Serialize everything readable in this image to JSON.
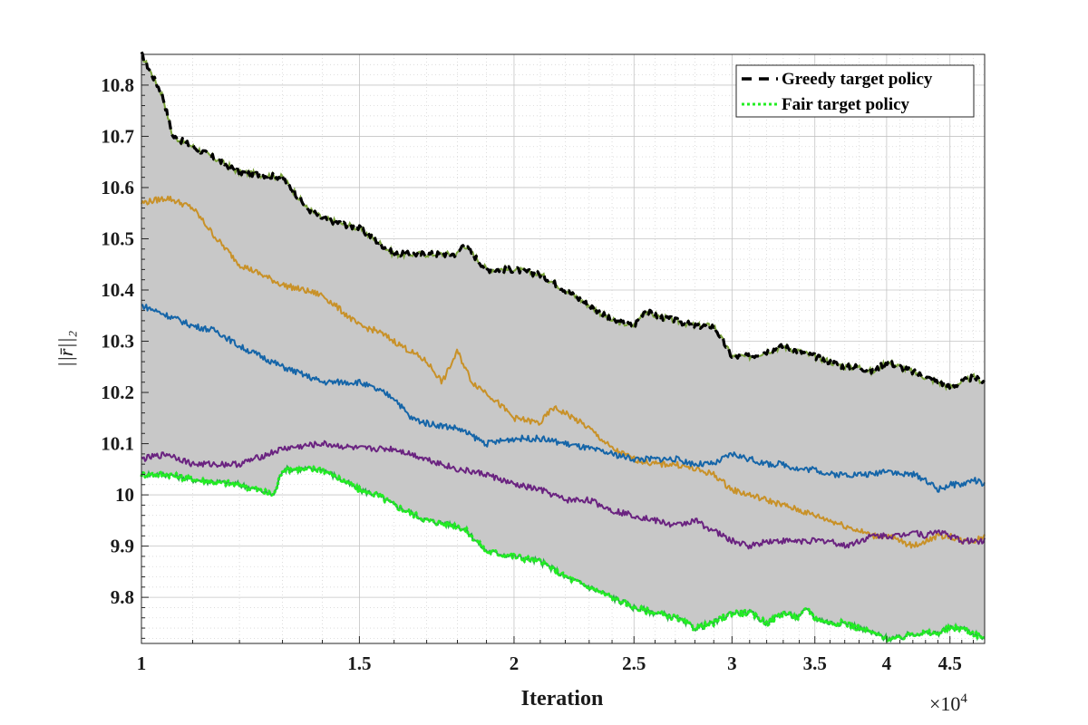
{
  "chart_data": {
    "type": "line",
    "xlabel": "Iteration",
    "ylabel": "||r̄||₂",
    "x_scale": "log",
    "x_multiplier_label": "×10",
    "x_multiplier_exponent": "4",
    "xlim": [
      10000,
      48000
    ],
    "ylim": [
      9.71,
      10.86
    ],
    "x_ticks": [
      1,
      1.5,
      2,
      2.5,
      3,
      3.5,
      4,
      4.5
    ],
    "x_tick_labels": [
      "1",
      "1.5",
      "2",
      "2.5",
      "3",
      "3.5",
      "4",
      "4.5"
    ],
    "y_ticks": [
      9.8,
      9.9,
      10,
      10.1,
      10.2,
      10.3,
      10.4,
      10.5,
      10.6,
      10.7,
      10.8
    ],
    "y_tick_labels": [
      "9.8",
      "9.9",
      "10",
      "10.1",
      "10.2",
      "10.3",
      "10.4",
      "10.5",
      "10.6",
      "10.7",
      "10.8"
    ],
    "grid": true,
    "minor_grid": true,
    "legend_position": "top-right",
    "shaded_band": {
      "between": [
        "Greedy target policy",
        "Fair target policy"
      ],
      "color": "#c8c8c8"
    },
    "series": [
      {
        "name": "Greedy target policy",
        "color": "#000000",
        "style": "dashed",
        "x": [
          10000,
          10200,
          10400,
          10600,
          11000,
          12000,
          13000,
          13600,
          14000,
          15000,
          16000,
          17000,
          18000,
          18200,
          19000,
          20000,
          21000,
          22000,
          23000,
          24000,
          25000,
          25500,
          26000,
          27000,
          28000,
          29000,
          30000,
          31000,
          32000,
          33000,
          34000,
          35000,
          36000,
          37000,
          38000,
          39000,
          40000,
          41000,
          42000,
          43000,
          44000,
          45000,
          46000,
          47000,
          48000
        ],
        "y": [
          10.86,
          10.82,
          10.78,
          10.7,
          10.68,
          10.63,
          10.62,
          10.56,
          10.54,
          10.52,
          10.47,
          10.47,
          10.47,
          10.49,
          10.44,
          10.44,
          10.43,
          10.4,
          10.37,
          10.34,
          10.33,
          10.36,
          10.35,
          10.34,
          10.33,
          10.33,
          10.27,
          10.27,
          10.28,
          10.29,
          10.28,
          10.27,
          10.26,
          10.25,
          10.25,
          10.24,
          10.26,
          10.25,
          10.24,
          10.23,
          10.22,
          10.21,
          10.22,
          10.23,
          10.22
        ]
      },
      {
        "name": "Fair target policy",
        "color": "#22ee22",
        "style": "dotted",
        "x": [
          10000,
          10500,
          11000,
          12000,
          12800,
          13000,
          13500,
          14000,
          15000,
          15500,
          16000,
          17000,
          18000,
          18300,
          19000,
          20000,
          21000,
          22000,
          23000,
          24000,
          25000,
          26000,
          27000,
          28000,
          29000,
          30000,
          31000,
          32000,
          33000,
          34000,
          34500,
          35000,
          36000,
          37000,
          38000,
          39000,
          40000,
          41000,
          42000,
          43000,
          44000,
          45000,
          46000,
          47000,
          48000
        ],
        "y": [
          10.04,
          10.04,
          10.03,
          10.02,
          10.0,
          10.05,
          10.05,
          10.05,
          10.01,
          10.0,
          9.98,
          9.95,
          9.94,
          9.93,
          9.89,
          9.88,
          9.87,
          9.84,
          9.82,
          9.8,
          9.78,
          9.77,
          9.76,
          9.74,
          9.75,
          9.77,
          9.77,
          9.75,
          9.77,
          9.76,
          9.78,
          9.76,
          9.75,
          9.75,
          9.74,
          9.73,
          9.72,
          9.72,
          9.73,
          9.73,
          9.73,
          9.74,
          9.74,
          9.73,
          9.72
        ]
      },
      {
        "color": "#c89128",
        "style": "solid",
        "x": [
          10000,
          10500,
          11000,
          11500,
          12000,
          13000,
          14000,
          15000,
          15500,
          16000,
          17000,
          17500,
          18000,
          18500,
          19000,
          20000,
          21000,
          21500,
          22000,
          23000,
          24000,
          25000,
          26000,
          27000,
          28000,
          29000,
          30000,
          31000,
          32000,
          33000,
          34000,
          35000,
          36000,
          37000,
          38000,
          39000,
          40000,
          41000,
          42000,
          43000,
          44000,
          45000,
          46000,
          47000,
          48000
        ],
        "y": [
          10.57,
          10.58,
          10.56,
          10.5,
          10.45,
          10.41,
          10.39,
          10.33,
          10.32,
          10.3,
          10.26,
          10.22,
          10.28,
          10.22,
          10.2,
          10.15,
          10.14,
          10.17,
          10.16,
          10.13,
          10.09,
          10.07,
          10.06,
          10.06,
          10.05,
          10.04,
          10.01,
          10.0,
          9.99,
          9.98,
          9.97,
          9.96,
          9.95,
          9.94,
          9.93,
          9.92,
          9.92,
          9.91,
          9.9,
          9.91,
          9.92,
          9.92,
          9.91,
          9.91,
          9.92
        ]
      },
      {
        "color": "#1565a8",
        "style": "solid",
        "x": [
          10000,
          10500,
          11000,
          11500,
          12000,
          13000,
          14000,
          15000,
          16000,
          16500,
          17000,
          18000,
          19000,
          20000,
          21000,
          22000,
          23000,
          24000,
          25000,
          26000,
          27000,
          28000,
          29000,
          30000,
          31000,
          32000,
          33000,
          34000,
          35000,
          36000,
          37000,
          38000,
          39000,
          40000,
          41000,
          42000,
          43000,
          44000,
          45000,
          46000,
          47000,
          48000
        ],
        "y": [
          10.37,
          10.35,
          10.33,
          10.32,
          10.29,
          10.25,
          10.22,
          10.22,
          10.19,
          10.15,
          10.14,
          10.13,
          10.1,
          10.11,
          10.11,
          10.1,
          10.09,
          10.08,
          10.07,
          10.07,
          10.07,
          10.06,
          10.06,
          10.08,
          10.07,
          10.06,
          10.06,
          10.05,
          10.05,
          10.04,
          10.04,
          10.04,
          10.04,
          10.05,
          10.04,
          10.04,
          10.03,
          10.01,
          10.02,
          10.02,
          10.03,
          10.02
        ]
      },
      {
        "color": "#6a2380",
        "style": "solid",
        "x": [
          10000,
          10500,
          11000,
          12000,
          13000,
          14000,
          15000,
          16000,
          17000,
          18000,
          19000,
          20000,
          21000,
          22000,
          23000,
          24000,
          25000,
          26000,
          27000,
          28000,
          29000,
          30000,
          31000,
          32000,
          33000,
          34000,
          35000,
          36000,
          37000,
          38000,
          39000,
          40000,
          41000,
          42000,
          43000,
          44000,
          45000,
          46000,
          47000,
          48000
        ],
        "y": [
          10.07,
          10.08,
          10.06,
          10.06,
          10.09,
          10.1,
          10.09,
          10.09,
          10.07,
          10.05,
          10.04,
          10.02,
          10.01,
          9.99,
          9.99,
          9.97,
          9.96,
          9.95,
          9.94,
          9.95,
          9.93,
          9.91,
          9.9,
          9.91,
          9.91,
          9.91,
          9.91,
          9.91,
          9.9,
          9.91,
          9.92,
          9.92,
          9.92,
          9.93,
          9.92,
          9.93,
          9.92,
          9.91,
          9.91,
          9.91
        ]
      }
    ]
  }
}
